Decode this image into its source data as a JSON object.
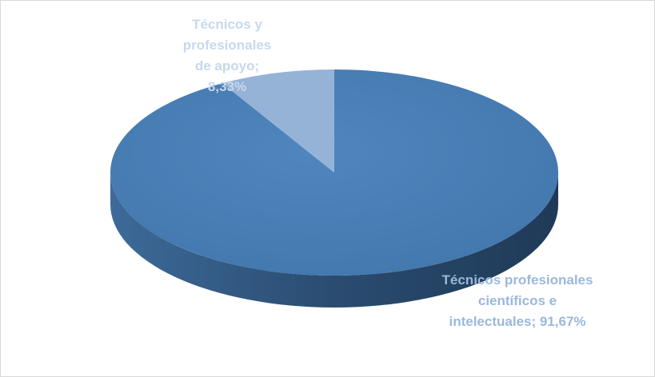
{
  "chart_data": {
    "type": "pie",
    "values": [
      91.67,
      8.33
    ],
    "value_labels": [
      "Técnicos profesionales científicos e intelectuales; 91,67%",
      "Técnicos y profesionales de apoyo; 8,33%"
    ],
    "colors": [
      "#4a7eb5",
      "#95b3d7"
    ],
    "label_colors": [
      "#9bb8dc",
      "#c8d8ec"
    ]
  }
}
